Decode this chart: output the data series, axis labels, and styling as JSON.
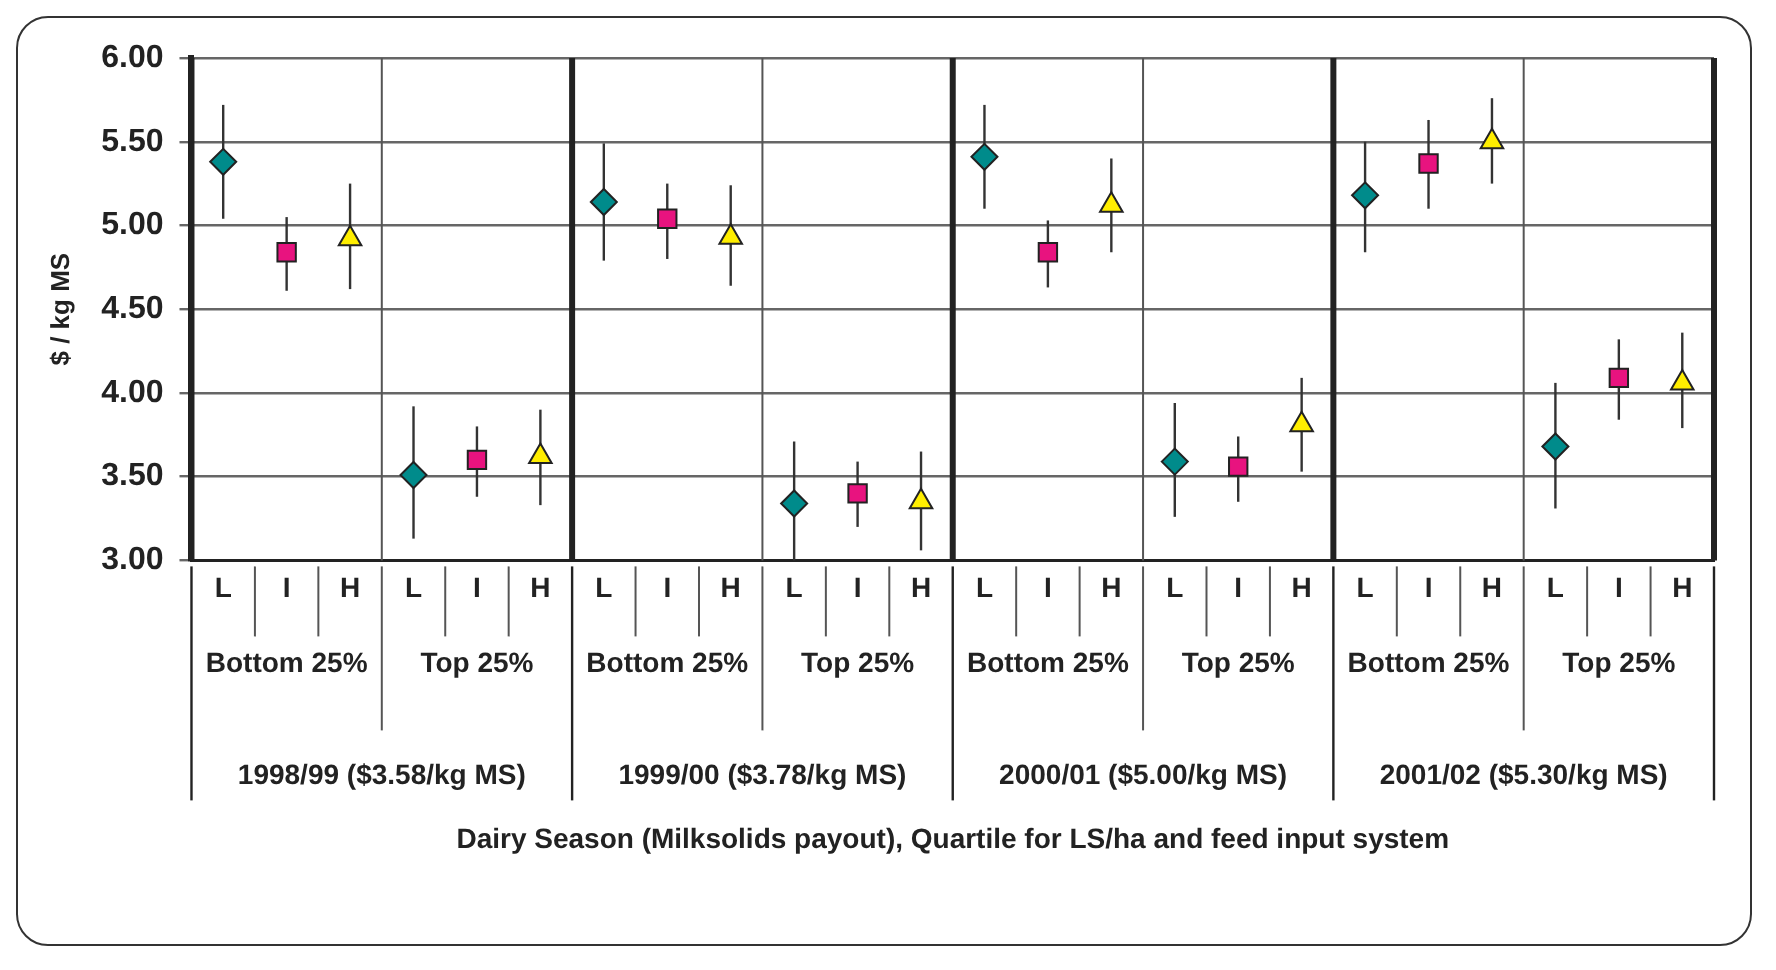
{
  "chart_data": {
    "type": "scatter",
    "ylabel": "$ / kg MS",
    "categories": [
      "L",
      "I",
      "H",
      "L",
      "I",
      "H",
      "L",
      "I",
      "H",
      "L",
      "I",
      "H",
      "L",
      "I",
      "H",
      "L",
      "I",
      "H",
      "L",
      "I",
      "H",
      "L",
      "I",
      "H"
    ],
    "annotations": [
      "Bottom 25%",
      "Top 25%",
      "Bottom 25%",
      "Top 25%",
      "Bottom 25%",
      "Top 25%",
      "Bottom 25%",
      "Top 25%",
      "1998/99 ($3.58/kg MS)",
      "1999/00 ($3.78/kg MS)",
      "2000/01 ($5.00/kg MS)",
      "2001/02 ($5.30/kg MS)",
      "Dairy Season (Milksolids payout), Quartile for LS/ha and feed input system"
    ],
    "series": [
      {
        "color": "#008b8b",
        "marker": "diamond",
        "values": [
          5.38,
          null,
          null,
          3.51,
          null,
          null,
          5.14,
          null,
          null,
          3.34,
          null,
          null,
          5.41,
          null,
          null,
          3.59,
          null,
          null,
          5.18,
          null,
          null,
          3.68,
          null,
          null
        ],
        "errors": [
          [
            5.04,
            5.72
          ],
          null,
          null,
          [
            3.13,
            3.92
          ],
          null,
          null,
          [
            4.79,
            5.49
          ],
          null,
          null,
          [
            3.0,
            3.71
          ],
          null,
          null,
          [
            5.1,
            5.72
          ],
          null,
          null,
          [
            3.26,
            3.94
          ],
          null,
          null,
          [
            4.84,
            5.5
          ],
          null,
          null,
          [
            3.31,
            4.06
          ],
          null,
          null
        ]
      },
      {
        "color": "#e8137f",
        "marker": "square",
        "values": [
          null,
          4.84,
          null,
          null,
          3.6,
          null,
          null,
          5.04,
          null,
          null,
          3.4,
          null,
          null,
          4.84,
          null,
          null,
          3.56,
          null,
          null,
          5.37,
          null,
          null,
          4.09,
          null
        ],
        "errors": [
          null,
          [
            4.61,
            5.05
          ],
          null,
          null,
          [
            3.38,
            3.8
          ],
          null,
          null,
          [
            4.8,
            5.25
          ],
          null,
          null,
          [
            3.2,
            3.59
          ],
          null,
          null,
          [
            4.63,
            5.03
          ],
          null,
          null,
          [
            3.35,
            3.74
          ],
          null,
          null,
          [
            5.1,
            5.63
          ],
          null,
          null,
          [
            3.84,
            4.32
          ],
          null
        ]
      },
      {
        "color": "#ffee00",
        "marker": "triangle",
        "values": [
          null,
          null,
          4.92,
          null,
          null,
          3.62,
          null,
          null,
          4.93,
          null,
          null,
          3.35,
          null,
          null,
          5.12,
          null,
          null,
          3.81,
          null,
          null,
          5.5,
          null,
          null,
          4.06
        ],
        "errors": [
          null,
          null,
          [
            4.62,
            5.25
          ],
          null,
          null,
          [
            3.33,
            3.9
          ],
          null,
          null,
          [
            4.64,
            5.24
          ],
          null,
          null,
          [
            3.06,
            3.65
          ],
          null,
          null,
          [
            4.84,
            5.4
          ],
          null,
          null,
          [
            3.53,
            4.09
          ],
          null,
          null,
          [
            5.25,
            5.76
          ],
          null,
          null,
          [
            3.79,
            4.36
          ]
        ]
      }
    ],
    "ylim": [
      3,
      6
    ],
    "yticks": [
      {
        "value": 3,
        "label": "3.00"
      },
      {
        "value": 3.5,
        "label": "3.50"
      },
      {
        "value": 4,
        "label": "4.00"
      },
      {
        "value": 4.5,
        "label": "4.50"
      },
      {
        "value": 5,
        "label": "5.00"
      },
      {
        "value": 5.5,
        "label": "5.50"
      },
      {
        "value": 6,
        "label": "6.00"
      }
    ],
    "grid": "y",
    "legend": false
  }
}
